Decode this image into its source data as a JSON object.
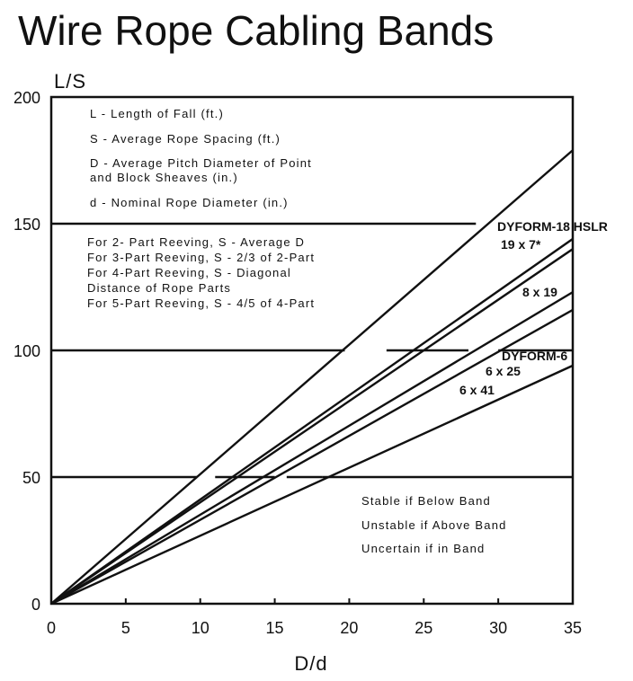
{
  "chart_data": {
    "type": "line",
    "title": "Wire Rope Cabling Bands",
    "xlabel": "D/d",
    "ylabel": "L/S",
    "xlim": [
      0,
      35
    ],
    "ylim": [
      0,
      200
    ],
    "xticks": [
      "0",
      "5",
      "10",
      "15",
      "20",
      "25",
      "30",
      "35"
    ],
    "yticks": [
      "0",
      "50",
      "100",
      "150",
      "200"
    ],
    "grid": false,
    "definitions": [
      "L - Length of Fall (ft.)",
      "S - Average Rope Spacing (ft.)",
      "D - Average Pitch Diameter of Point",
      "and Block Sheaves (in.)",
      "d - Nominal Rope Diameter (in.)"
    ],
    "reeving_notes": [
      "For 2- Part Reeving, S - Average D",
      "For 3-Part Reeving, S - 2/3 of 2-Part",
      "For 4-Part Reeving, S - Diagonal",
      "Distance of Rope Parts",
      "For 5-Part Reeving, S - 4/5 of 4-Part"
    ],
    "stability_notes": [
      "Stable if Below Band",
      "Unstable if Above Band",
      "Uncertain if in Band"
    ],
    "bands": [
      {
        "y": 150,
        "solid_to_x": 28.5,
        "dashed_segments": []
      },
      {
        "y": 100,
        "solid_to_x": 19.7,
        "dashed_segments": [
          [
            22.5,
            28.0
          ],
          [
            30.0,
            35.0
          ]
        ]
      },
      {
        "y": 50,
        "solid_to_x": 9.8,
        "dashed_segments": [
          [
            11.0,
            15.0
          ],
          [
            15.8,
            18.2
          ]
        ],
        "solid_from_x": 18.2
      }
    ],
    "series": [
      {
        "name": "",
        "x": [
          0,
          35
        ],
        "y": [
          0,
          179
        ]
      },
      {
        "name": "DYFORM-18 HSLR",
        "x": [
          0,
          35
        ],
        "y": [
          0,
          144
        ]
      },
      {
        "name": "19 x 7*",
        "x": [
          0,
          35
        ],
        "y": [
          0,
          140
        ]
      },
      {
        "name": "8 x 19",
        "x": [
          0,
          35
        ],
        "y": [
          0,
          123
        ]
      },
      {
        "name": "DYFORM-6",
        "x": [
          0,
          35
        ],
        "y": [
          0,
          116
        ]
      },
      {
        "name": "6 x 41",
        "x": [
          0,
          35
        ],
        "y": [
          0,
          94
        ]
      }
    ],
    "extra_labels": [
      "6 x 25"
    ]
  }
}
